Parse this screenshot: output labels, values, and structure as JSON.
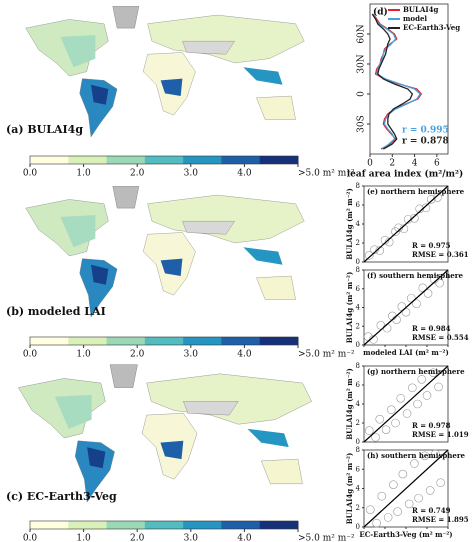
{
  "maps": [
    {
      "label": "(a) BULAI4g"
    },
    {
      "label": "(b) modeled LAI"
    },
    {
      "label": "(c) EC-Earth3-Veg"
    }
  ],
  "colorbar": {
    "range": [
      0,
      5
    ],
    "colors": [
      "#ffffe0",
      "#d9f0b8",
      "#9ad8b6",
      "#52bcc0",
      "#2596c2",
      "#1f5fa8",
      "#17307a"
    ],
    "ticks": [
      {
        "value": 0,
        "label": "0.0"
      },
      {
        "value": 1,
        "label": "1.0"
      },
      {
        "value": 2,
        "label": "2.0"
      },
      {
        "value": 3,
        "label": "3.0"
      },
      {
        "value": 4,
        "label": "4.0"
      },
      {
        "value": 5,
        "label": ">5.0 m² m⁻²"
      }
    ]
  },
  "chart_data": [
    {
      "type": "line",
      "title": "(d)",
      "xlabel": "leaf area index (m²/m²)",
      "xlim": [
        0,
        7
      ],
      "xticks": [
        0,
        2,
        4,
        6
      ],
      "ylim": [
        -60,
        90
      ],
      "yticks": [
        {
          "value": 60,
          "label": "60N"
        },
        {
          "value": 30,
          "label": "30N"
        },
        {
          "value": 0,
          "label": "0"
        },
        {
          "value": -30,
          "label": "30S"
        }
      ],
      "latitude": [
        80,
        75,
        70,
        65,
        60,
        55,
        50,
        45,
        40,
        35,
        30,
        25,
        20,
        15,
        10,
        5,
        0,
        -5,
        -10,
        -15,
        -20,
        -25,
        -30,
        -35,
        -40,
        -45,
        -50,
        -55
      ],
      "series": [
        {
          "name": "BULAI4g",
          "color": "#e8202a",
          "values": [
            0.3,
            0.6,
            0.9,
            1.6,
            2.2,
            2.4,
            1.8,
            1.3,
            1.2,
            1.0,
            0.9,
            0.6,
            0.5,
            1.3,
            2.6,
            4.2,
            4.6,
            4.3,
            3.2,
            2.2,
            1.6,
            1.3,
            1.2,
            1.5,
            1.9,
            2.3,
            1.8,
            1.0
          ]
        },
        {
          "name": "model",
          "color": "#4aa3df",
          "values": [
            0.3,
            0.5,
            0.8,
            1.5,
            2.1,
            2.3,
            1.9,
            1.4,
            1.2,
            1.1,
            0.9,
            0.7,
            0.6,
            1.4,
            2.7,
            4.0,
            4.5,
            4.2,
            3.3,
            2.3,
            1.7,
            1.4,
            1.3,
            1.6,
            2.0,
            2.2,
            1.7,
            1.1
          ]
        },
        {
          "name": "EC-Earth3-Veg",
          "color": "#222222",
          "values": [
            0.2,
            0.5,
            0.7,
            1.2,
            1.6,
            1.8,
            1.6,
            1.5,
            1.4,
            1.2,
            1.0,
            0.8,
            0.7,
            1.2,
            2.2,
            3.4,
            3.8,
            3.6,
            2.9,
            2.1,
            1.7,
            1.6,
            1.6,
            1.9,
            2.2,
            2.4,
            2.0,
            1.2
          ]
        }
      ],
      "annotations": [
        {
          "text": "r = 0.995",
          "color": "#4aa3df"
        },
        {
          "text": "r = 0.878",
          "color": "#222222"
        }
      ]
    },
    {
      "type": "scatter",
      "title": "(e) northern hemisphere",
      "ylabel": "BULAI4g (m² m⁻²)",
      "xlim": [
        0,
        8
      ],
      "ylim": [
        0,
        8
      ],
      "yticks": [
        0,
        2,
        4,
        6,
        8
      ],
      "x": [
        0.5,
        1.0,
        1.5,
        2.0,
        2.4,
        3.0,
        3.3,
        3.8,
        4.2,
        4.8,
        5.3,
        5.9,
        6.4,
        7.0
      ],
      "values": [
        0.7,
        1.3,
        1.2,
        2.3,
        2.1,
        3.2,
        3.6,
        3.5,
        4.5,
        4.6,
        5.6,
        5.7,
        6.6,
        6.8
      ],
      "annotations": [
        "R = 0.975",
        "RMSE = 0.361"
      ]
    },
    {
      "type": "scatter",
      "title": "(f) southern hemisphere",
      "ylabel": "BULAI4g (m² m⁻²)",
      "xlabel": "modeled LAI (m² m⁻²)",
      "xlim": [
        0,
        8
      ],
      "ylim": [
        0,
        8
      ],
      "yticks": [
        0,
        2,
        4,
        6,
        8
      ],
      "xticks": [
        0,
        2,
        4,
        6,
        8
      ],
      "x": [
        0.4,
        0.9,
        1.6,
        2.2,
        2.7,
        3.1,
        3.6,
        4.0,
        4.5,
        5.0,
        5.6,
        6.1,
        6.7,
        7.2
      ],
      "values": [
        0.9,
        0.6,
        2.1,
        1.8,
        3.1,
        2.7,
        4.1,
        3.5,
        5.0,
        4.4,
        6.1,
        5.5,
        7.0,
        6.6
      ],
      "annotations": [
        "R = 0.984",
        "RMSE = 0.554"
      ]
    },
    {
      "type": "scatter",
      "title": "(g) northern hemisphere",
      "ylabel": "BULAI4g (m² m⁻²)",
      "xlim": [
        0,
        8
      ],
      "ylim": [
        0,
        8
      ],
      "yticks": [
        0,
        2,
        4,
        6,
        8
      ],
      "x": [
        0.5,
        1.1,
        1.5,
        2.1,
        2.6,
        3.0,
        3.5,
        4.1,
        4.6,
        5.1,
        5.5,
        6.0,
        6.6,
        7.1
      ],
      "values": [
        1.2,
        0.5,
        2.4,
        1.3,
        3.4,
        2.0,
        4.6,
        3.0,
        5.7,
        4.0,
        6.6,
        4.9,
        7.3,
        5.8
      ],
      "annotations": [
        "R = 0.978",
        "RMSE = 1.019"
      ]
    },
    {
      "type": "scatter",
      "title": "(h) southern hemisphere",
      "ylabel": "BULAI4g (m² m⁻²)",
      "xlabel": "EC-Earth3-Veg (m² m⁻²)",
      "xlim": [
        0,
        8
      ],
      "ylim": [
        0,
        8
      ],
      "yticks": [
        0,
        2,
        4,
        6,
        8
      ],
      "xticks": [
        0,
        2,
        4,
        6,
        8
      ],
      "x": [
        0.6,
        1.2,
        1.7,
        2.3,
        2.8,
        3.2,
        3.7,
        4.3,
        4.8,
        5.2,
        5.8,
        6.3,
        6.8,
        7.3
      ],
      "values": [
        1.8,
        0.4,
        3.2,
        1.0,
        4.4,
        1.6,
        5.5,
        2.4,
        6.6,
        3.0,
        7.4,
        3.8,
        7.6,
        4.6
      ],
      "annotations": [
        "R = 0.749",
        "RMSE = 1.895"
      ]
    }
  ]
}
